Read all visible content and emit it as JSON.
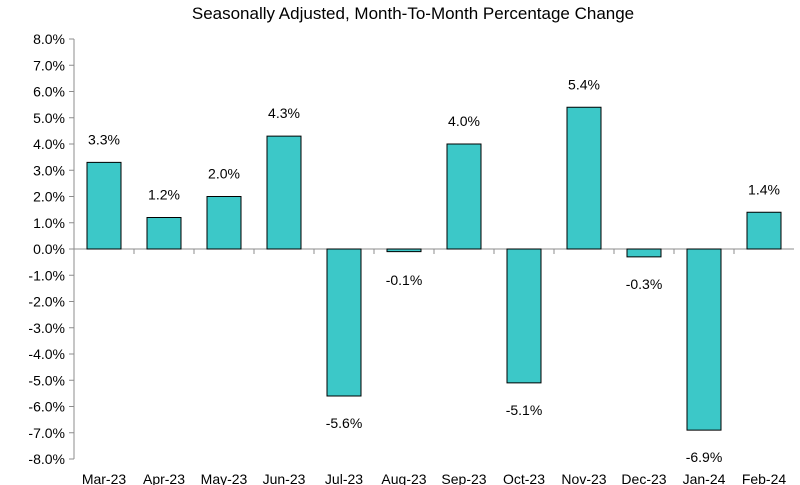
{
  "chart_data": {
    "type": "bar",
    "title": "Seasonally Adjusted,  Month-To-Month Percentage Change",
    "xlabel": "",
    "ylabel": "",
    "categories": [
      "Mar-23",
      "Apr-23",
      "May-23",
      "Jun-23",
      "Jul-23",
      "Aug-23",
      "Sep-23",
      "Oct-23",
      "Nov-23",
      "Dec-23",
      "Jan-24",
      "Feb-24"
    ],
    "values": [
      3.3,
      1.2,
      2.0,
      4.3,
      -5.6,
      -0.1,
      4.0,
      -5.1,
      5.4,
      -0.3,
      -6.9,
      1.4
    ],
    "data_labels": [
      "3.3%",
      "1.2%",
      "2.0%",
      "4.3%",
      "-5.6%",
      "-0.1%",
      "4.0%",
      "-5.1%",
      "5.4%",
      "-0.3%",
      "-6.9%",
      "1.4%"
    ],
    "ylim": [
      -8,
      8
    ],
    "y_ticks": [
      8,
      7,
      6,
      5,
      4,
      3,
      2,
      1,
      0,
      -1,
      -2,
      -3,
      -4,
      -5,
      -6,
      -7,
      -8
    ],
    "y_tick_labels": [
      "8.0%",
      "7.0%",
      "6.0%",
      "5.0%",
      "4.0%",
      "3.0%",
      "2.0%",
      "1.0%",
      "0.0%",
      "-1.0%",
      "-2.0%",
      "-3.0%",
      "-4.0%",
      "-5.0%",
      "-6.0%",
      "-7.0%",
      "-8.0%"
    ],
    "grid": false,
    "legend": "none",
    "colors": {
      "bar_fill": "#3cc8c8",
      "bar_stroke": "#000000",
      "axis": "#8c8c8c"
    }
  }
}
